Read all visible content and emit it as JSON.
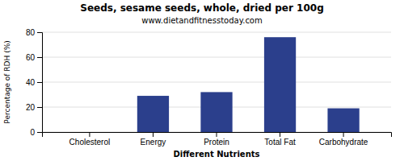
{
  "chart_data": {
    "type": "bar",
    "title": "Seeds, sesame seeds, whole, dried per 100g",
    "subtitle": "www.dietandfitnesstoday.com",
    "xlabel": "Different Nutrients",
    "ylabel": "Percentage of RDH (%)",
    "categories": [
      "Cholesterol",
      "Energy",
      "Protein",
      "Total Fat",
      "Carbohydrate"
    ],
    "values": [
      0,
      29,
      32,
      76,
      19
    ],
    "color": "#2b3f8c",
    "ylim": [
      0,
      80
    ],
    "yticks": [
      0,
      20,
      40,
      60,
      80
    ],
    "grid": true
  }
}
